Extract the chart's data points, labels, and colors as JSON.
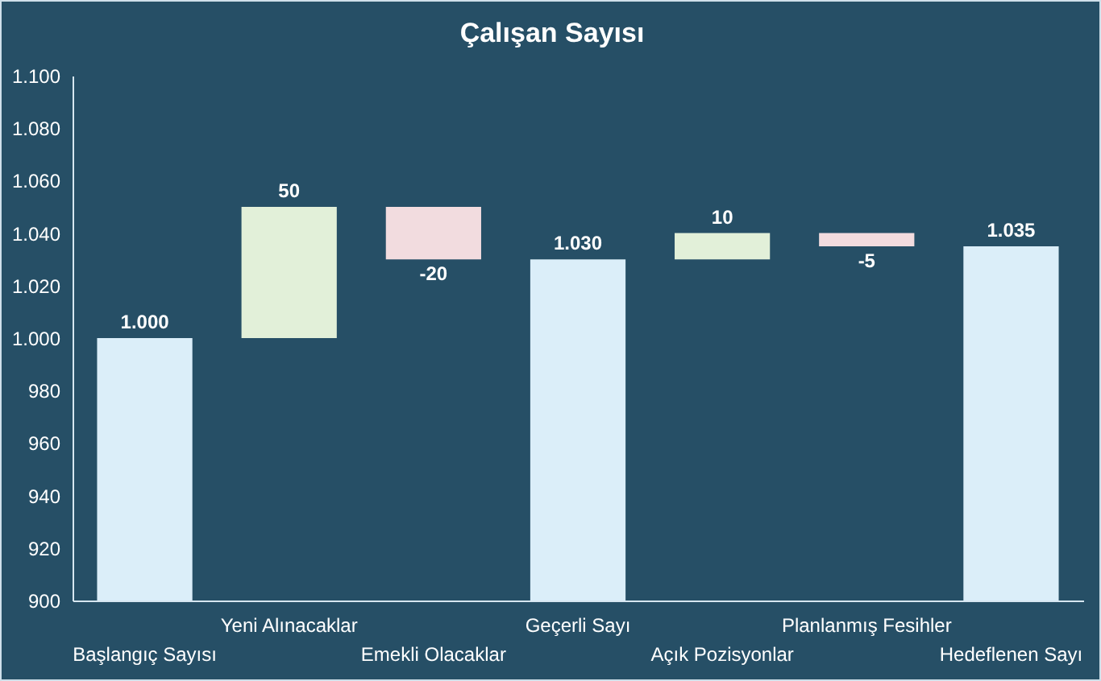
{
  "chart_data": {
    "type": "bar",
    "title": "Çalışan Sayısı",
    "categories": [
      "Başlangıç Sayısı",
      "Yeni Alınacaklar",
      "Emekli Olacaklar",
      "Geçerli Sayı",
      "Açık Pozisyonlar",
      "Planlanmış Fesihler",
      "Hedeflenen Sayı"
    ],
    "values": [
      1000,
      50,
      -20,
      1030,
      10,
      -5,
      1035
    ],
    "base": [
      null,
      1000,
      1050,
      null,
      1030,
      1040,
      null
    ],
    "colors": [
      "#dbeef9",
      "#e2f0d9",
      "#f2dcdf",
      "#dbeef9",
      "#e2f0d9",
      "#f2dcdf",
      "#dbeef9"
    ],
    "value_labels": [
      "1.000",
      "50",
      "-20",
      "1.030",
      "10",
      "-5",
      "1.035"
    ],
    "ylim": [
      900,
      1100
    ],
    "yticks": [
      900,
      920,
      940,
      960,
      980,
      {
        "value": 1000,
        "label": "1.000"
      },
      {
        "value": 1020,
        "label": "1.020"
      },
      {
        "value": 1040,
        "label": "1.040"
      },
      {
        "value": 1060,
        "label": "1.060"
      },
      {
        "value": 1080,
        "label": "1.080"
      },
      {
        "value": 1100,
        "label": "1.100"
      }
    ]
  }
}
